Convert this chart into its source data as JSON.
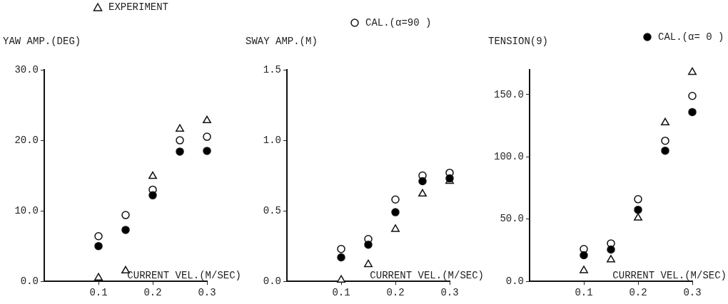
{
  "chart_data": [
    {
      "type": "scatter",
      "ylabel": "YAW AMP.(DEG)",
      "xlabel": "CURRENT VEL.(M/SEC)",
      "legend": "top",
      "grid": false,
      "xlim": [
        0,
        0.3
      ],
      "xticks": [
        0.1,
        0.2,
        0.3
      ],
      "ylim": [
        0,
        30
      ],
      "yticks": [
        {
          "value": 0,
          "label": "0.0"
        },
        {
          "value": 10,
          "label": "10.0"
        },
        {
          "value": 20,
          "label": "20.0"
        },
        {
          "value": 30,
          "label": "30.0"
        }
      ],
      "x": [
        0.1,
        0.15,
        0.2,
        0.25,
        0.3
      ],
      "series": [
        {
          "name": "EXPERIMENT",
          "color": "#ffffff",
          "marker": "triangle",
          "values": [
            0.5,
            1.5,
            14.9,
            21.6,
            22.8
          ]
        },
        {
          "name": "CAL.(α=90 )",
          "color": "#ffffff",
          "marker": "circle",
          "values": [
            6.4,
            9.4,
            13.0,
            20.0,
            20.5
          ]
        },
        {
          "name": "CAL.(α= 0 )",
          "color": "#000000",
          "marker": "circle",
          "values": [
            5.0,
            7.3,
            12.2,
            18.4,
            18.5
          ]
        }
      ]
    },
    {
      "type": "scatter",
      "ylabel": "SWAY AMP.(M)",
      "xlabel": "CURRENT VEL.(M/SEC)",
      "grid": false,
      "xlim": [
        0,
        0.3
      ],
      "xticks": [
        0.1,
        0.2,
        0.3
      ],
      "ylim": [
        0,
        1.5
      ],
      "yticks": [
        {
          "value": 0,
          "label": "0.0"
        },
        0.5,
        {
          "value": 1,
          "label": "1.0"
        },
        1.5
      ],
      "x": [
        0.1,
        0.15,
        0.2,
        0.25,
        0.3
      ],
      "series": [
        {
          "color": "#ffffff",
          "marker": "triangle",
          "values": [
            0.01,
            0.12,
            0.37,
            0.62,
            0.71
          ]
        },
        {
          "color": "#ffffff",
          "marker": "circle",
          "values": [
            0.23,
            0.3,
            0.58,
            0.75,
            0.77
          ]
        },
        {
          "color": "#000000",
          "marker": "circle",
          "values": [
            0.17,
            0.26,
            0.49,
            0.71,
            0.73
          ]
        }
      ]
    },
    {
      "type": "scatter",
      "ylabel": "TENSION(9)",
      "xlabel": "CURRENT VEL.(M/SEC)",
      "grid": false,
      "xlim": [
        0,
        0.3
      ],
      "xticks": [
        0.1,
        0.2,
        0.3
      ],
      "ylim": [
        0,
        170
      ],
      "yticks": [
        {
          "value": 0,
          "label": "0.0"
        },
        {
          "value": 50,
          "label": "50.0"
        },
        {
          "value": 100,
          "label": "100.0"
        },
        {
          "value": 150,
          "label": "150.0"
        }
      ],
      "x": [
        0.1,
        0.15,
        0.2,
        0.25,
        0.3
      ],
      "series": [
        {
          "color": "#ffffff",
          "marker": "triangle",
          "values": [
            8.7,
            17.4,
            51,
            127.5,
            168
          ]
        },
        {
          "color": "#ffffff",
          "marker": "circle",
          "values": [
            26,
            30.5,
            66,
            113,
            149
          ]
        },
        {
          "color": "#000000",
          "marker": "circle",
          "values": [
            21,
            25.6,
            57.5,
            105,
            136
          ]
        }
      ]
    }
  ]
}
